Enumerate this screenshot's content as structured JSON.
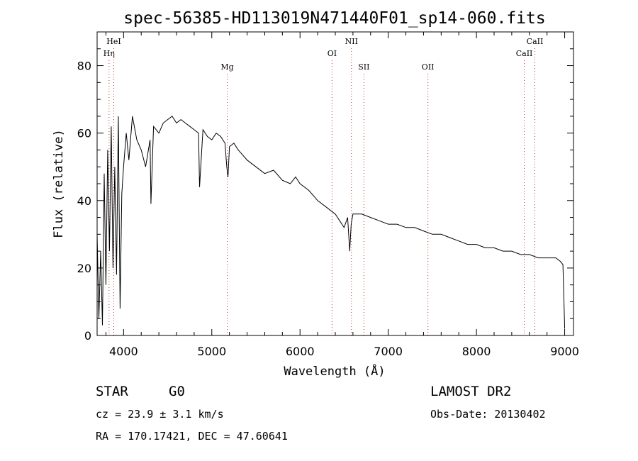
{
  "chart_data": {
    "type": "line",
    "title": "spec-56385-HD113019N471440F01_sp14-060.fits",
    "xlabel": "Wavelength (Å)",
    "ylabel": "Flux (relative)",
    "xlim": [
      3700,
      9100
    ],
    "ylim": [
      0,
      90
    ],
    "xticks": [
      4000,
      5000,
      6000,
      7000,
      8000,
      9000
    ],
    "yticks": [
      0,
      20,
      40,
      60,
      80
    ],
    "grid": false,
    "series": [
      {
        "color": "#000000",
        "x": [
          3700,
          3720,
          3740,
          3760,
          3780,
          3800,
          3820,
          3840,
          3860,
          3880,
          3900,
          3920,
          3940,
          3960,
          3980,
          4000,
          4030,
          4060,
          4100,
          4150,
          4200,
          4250,
          4300,
          4310,
          4340,
          4400,
          4450,
          4500,
          4550,
          4600,
          4650,
          4700,
          4750,
          4800,
          4850,
          4861,
          4900,
          4950,
          5000,
          5050,
          5100,
          5150,
          5170,
          5183,
          5200,
          5250,
          5300,
          5400,
          5500,
          5600,
          5700,
          5800,
          5890,
          5950,
          6000,
          6100,
          6200,
          6300,
          6400,
          6450,
          6500,
          6540,
          6563,
          6580,
          6600,
          6700,
          6800,
          6900,
          7000,
          7100,
          7200,
          7300,
          7400,
          7500,
          7600,
          7700,
          7800,
          7900,
          8000,
          8100,
          8200,
          8300,
          8400,
          8500,
          8600,
          8700,
          8800,
          8850,
          8900,
          8950,
          8980,
          9000
        ],
        "y": [
          30,
          5,
          25,
          3,
          48,
          15,
          55,
          25,
          62,
          20,
          50,
          18,
          65,
          8,
          42,
          50,
          60,
          52,
          65,
          58,
          55,
          50,
          58,
          39,
          62,
          60,
          63,
          64,
          65,
          63,
          64,
          63,
          62,
          61,
          60,
          44,
          61,
          59,
          58,
          60,
          59,
          57,
          50,
          47,
          56,
          57,
          55,
          52,
          50,
          48,
          49,
          46,
          45,
          47,
          45,
          43,
          40,
          38,
          36,
          34,
          32,
          35,
          25,
          33,
          36,
          36,
          35,
          34,
          33,
          33,
          32,
          32,
          31,
          30,
          30,
          29,
          28,
          27,
          27,
          26,
          26,
          25,
          25,
          24,
          24,
          23,
          23,
          23,
          23,
          22,
          21,
          2
        ]
      }
    ],
    "line_markers": [
      {
        "label": "Hη",
        "x": 3835,
        "row": 2
      },
      {
        "label": "HeI",
        "x": 3889,
        "row": 1
      },
      {
        "label": "Mg",
        "x": 5175,
        "row": 3
      },
      {
        "label": "OI",
        "x": 6363,
        "row": 2
      },
      {
        "label": "NII",
        "x": 6583,
        "row": 1
      },
      {
        "label": "SII",
        "x": 6724,
        "row": 3
      },
      {
        "label": "OII",
        "x": 7450,
        "row": 3
      },
      {
        "label": "CaII",
        "x": 8542,
        "row": 2
      },
      {
        "label": "CaII",
        "x": 8662,
        "row": 1
      }
    ]
  },
  "footer": {
    "object_class": "STAR",
    "subclass": "G0",
    "redshift": "cz = 23.9 ± 3.1 km/s",
    "coords": "RA = 170.17421, DEC =  47.60641",
    "survey": "LAMOST DR2",
    "obs_date": "Obs-Date: 20130402"
  }
}
